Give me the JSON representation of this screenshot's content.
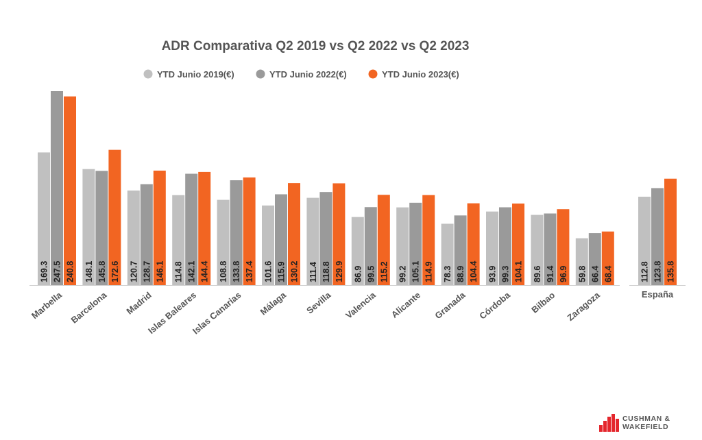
{
  "chart_data": {
    "type": "bar",
    "title": "ADR Comparativa Q2 2019 vs Q2 2022 vs Q2 2023",
    "series": [
      {
        "name": "YTD Junio 2019(€)",
        "color": "#c0c0c0",
        "values": [
          169.3,
          148.1,
          120.7,
          114.8,
          108.8,
          101.6,
          111.4,
          86.9,
          99.2,
          78.3,
          93.9,
          89.6,
          59.8
        ],
        "labels": [
          "169.3",
          "148.1",
          "120.7",
          "114.8",
          "108.8",
          "101.6",
          "111.4",
          "86.9",
          "99.2",
          "78.3",
          "93.9",
          "89.6",
          "59.8"
        ]
      },
      {
        "name": "YTD Junio 2022(€)",
        "color": "#9a9a9a",
        "values": [
          247.5,
          145.8,
          128.7,
          142.1,
          133.8,
          115.9,
          118.8,
          99.5,
          105.1,
          88.9,
          99.3,
          91.4,
          66.4
        ],
        "labels": [
          "247.5",
          "145.8",
          "128.7",
          "142.1",
          "133.8",
          "115.9",
          "118.8",
          "99.5",
          "105.1",
          "88.9",
          "99.3",
          "91.4",
          "66.4"
        ]
      },
      {
        "name": "YTD Junio 2023(€)",
        "color": "#f26522",
        "values": [
          240.8,
          172.6,
          146.1,
          144.4,
          137.4,
          130.2,
          129.9,
          115.2,
          114.9,
          104.4,
          104.1,
          96.9,
          68.4
        ],
        "labels": [
          "240.8",
          "172.6",
          "146.1",
          "144.4",
          "137.4",
          "130.2",
          "129.9",
          "115.2",
          "114.9",
          "104.4",
          "104.1",
          "96.9",
          "68.4"
        ]
      }
    ],
    "categories": [
      "Marbella",
      "Barcelona",
      "Madrid",
      "Islas Baleares",
      "Islas Canarias",
      "Málaga",
      "Sevilla",
      "Valencia",
      "Alicante",
      "Granada",
      "Córdoba",
      "Bilbao",
      "Zaragoza"
    ],
    "national": {
      "category": "España",
      "values": [
        112.8,
        123.8,
        135.8
      ],
      "labels": [
        "112.8",
        "123.8",
        "135.8"
      ]
    },
    "ylim": [
      0,
      250
    ],
    "legend_position": "top-center",
    "grid": false
  },
  "logo": {
    "line1": "CUSHMAN &",
    "line2": "WAKEFIELD",
    "color": "#e4262c"
  }
}
